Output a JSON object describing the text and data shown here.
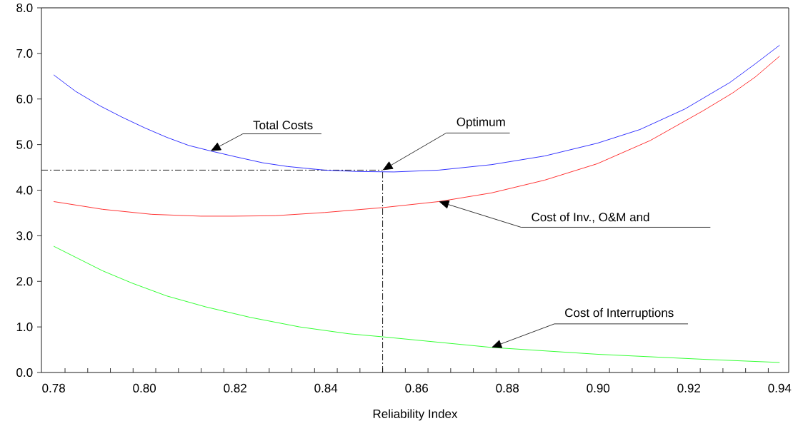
{
  "chart_data": {
    "type": "line",
    "xlabel": "Reliability Index",
    "xlim": [
      0.7773,
      0.942
    ],
    "ylim": [
      0,
      8
    ],
    "xticks": [
      0.78,
      {
        "value": 0.8,
        "label": "0.80"
      },
      0.82,
      0.84,
      0.86,
      0.88,
      {
        "value": 0.9,
        "label": "0.90"
      },
      0.92,
      0.94,
      {
        "value": 0.7825,
        "label": null
      },
      {
        "value": 0.7875,
        "label": null
      },
      {
        "value": 0.7925,
        "label": null
      },
      {
        "value": 0.7975,
        "label": null
      },
      {
        "value": 0.8025,
        "label": null
      },
      {
        "value": 0.8075,
        "label": null
      },
      {
        "value": 0.8125,
        "label": null
      },
      {
        "value": 0.8175,
        "label": null
      },
      {
        "value": 0.8225,
        "label": null
      },
      {
        "value": 0.8275,
        "label": null
      },
      {
        "value": 0.8325,
        "label": null
      },
      {
        "value": 0.8375,
        "label": null
      },
      {
        "value": 0.8425,
        "label": null
      },
      {
        "value": 0.8475,
        "label": null
      },
      {
        "value": 0.8525,
        "label": null
      },
      {
        "value": 0.8575,
        "label": null
      },
      {
        "value": 0.8625,
        "label": null
      },
      {
        "value": 0.8675,
        "label": null
      },
      {
        "value": 0.8725,
        "label": null
      },
      {
        "value": 0.8775,
        "label": null
      },
      {
        "value": 0.8825,
        "label": null
      },
      {
        "value": 0.8875,
        "label": null
      },
      {
        "value": 0.8925,
        "label": null
      },
      {
        "value": 0.8975,
        "label": null
      },
      {
        "value": 0.9025,
        "label": null
      },
      {
        "value": 0.9075,
        "label": null
      },
      {
        "value": 0.9125,
        "label": null
      },
      {
        "value": 0.9175,
        "label": null
      },
      {
        "value": 0.9225,
        "label": null
      },
      {
        "value": 0.9275,
        "label": null
      },
      {
        "value": 0.9325,
        "label": null
      },
      {
        "value": 0.9375,
        "label": null
      }
    ],
    "yticks": [
      {
        "value": 0,
        "label": "0.0"
      },
      {
        "value": 1,
        "label": "1.0"
      },
      {
        "value": 2,
        "label": "2.0"
      },
      {
        "value": 3,
        "label": "3.0"
      },
      {
        "value": 4,
        "label": "4.0"
      },
      {
        "value": 5,
        "label": "5.0"
      },
      {
        "value": 6,
        "label": "6.0"
      },
      {
        "value": 7,
        "label": "7.0"
      },
      {
        "value": 8,
        "label": "8.0"
      }
    ],
    "series": [
      {
        "name": "Total Costs",
        "color": "#0000ff",
        "x": [
          0.78,
          0.7848,
          0.7902,
          0.7951,
          0.8,
          0.8049,
          0.8098,
          0.8146,
          0.8202,
          0.8261,
          0.8315,
          0.8397,
          0.8468,
          0.855,
          0.8649,
          0.8765,
          0.8882,
          0.8998,
          0.9092,
          0.9191,
          0.929,
          0.9346,
          0.94
        ],
        "values": [
          6.53,
          6.17,
          5.85,
          5.6,
          5.37,
          5.16,
          4.98,
          4.86,
          4.73,
          4.6,
          4.52,
          4.44,
          4.41,
          4.4,
          4.44,
          4.56,
          4.75,
          5.03,
          5.33,
          5.78,
          6.36,
          6.77,
          7.18
        ]
      },
      {
        "name": "Cost of Inv., O&M and",
        "color": "#ff0000",
        "x": [
          0.78,
          0.7908,
          0.8016,
          0.8124,
          0.8195,
          0.8288,
          0.8397,
          0.8528,
          0.8649,
          0.8765,
          0.8882,
          0.8998,
          0.9115,
          0.9231,
          0.9296,
          0.9346,
          0.94
        ],
        "values": [
          3.75,
          3.58,
          3.47,
          3.43,
          3.43,
          3.44,
          3.51,
          3.62,
          3.75,
          3.94,
          4.22,
          4.58,
          5.09,
          5.74,
          6.13,
          6.48,
          6.94
        ]
      },
      {
        "name": "Cost of Interruptions",
        "color": "#00ff00",
        "x": [
          0.78,
          0.7854,
          0.7908,
          0.7973,
          0.8049,
          0.8135,
          0.8233,
          0.8342,
          0.845,
          0.8528,
          0.8765,
          0.8998,
          0.9231,
          0.94
        ],
        "values": [
          2.77,
          2.5,
          2.23,
          1.96,
          1.68,
          1.44,
          1.21,
          1.0,
          0.85,
          0.78,
          0.55,
          0.4,
          0.29,
          0.22
        ]
      }
    ],
    "ref_lines": [
      {
        "axis": "y",
        "value": 4.44,
        "color": "#000000",
        "line_style": "dashed"
      },
      {
        "axis": "x",
        "value": 0.8525,
        "color": "#000000",
        "line_style": "dashed"
      }
    ],
    "annotations": [
      "Optimum"
    ],
    "grid": false
  }
}
